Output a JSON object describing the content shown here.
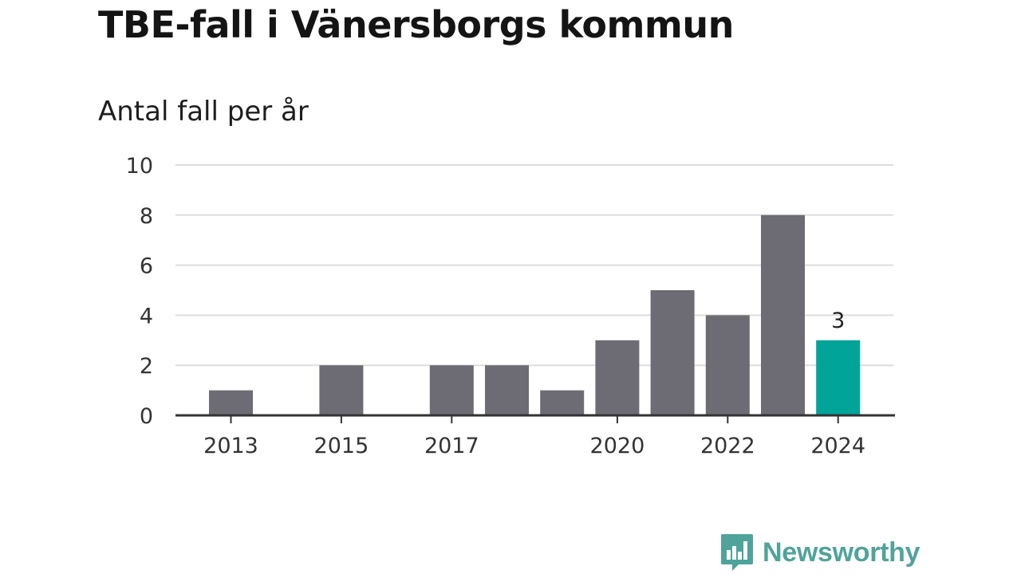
{
  "title": "TBE-fall i Vänersborgs kommun",
  "subtitle": "Antal fall per år",
  "brand": {
    "name": "Newsworthy",
    "icon": "newsworthy-logo-icon",
    "color": "#4fa39a"
  },
  "colors": {
    "bar": "#6d6c74",
    "highlight": "#00a499",
    "grid": "#dddddd",
    "axis": "#333333"
  },
  "chart_data": {
    "type": "bar",
    "categories": [
      "2013",
      "2014",
      "2015",
      "2016",
      "2017",
      "2018",
      "2019",
      "2020",
      "2021",
      "2022",
      "2023",
      "2024"
    ],
    "values": [
      1,
      0,
      2,
      0,
      2,
      2,
      1,
      3,
      5,
      4,
      8,
      3
    ],
    "x_tick_labels": [
      "2013",
      "2015",
      "2017",
      "2020",
      "2022",
      "2024"
    ],
    "y_ticks": [
      0,
      2,
      4,
      6,
      8,
      10
    ],
    "ylim": [
      0,
      10
    ],
    "highlight_category": "2024",
    "data_labels": [
      {
        "category": "2024",
        "text": "3"
      }
    ],
    "grid": true,
    "xlabel": "",
    "ylabel": ""
  }
}
